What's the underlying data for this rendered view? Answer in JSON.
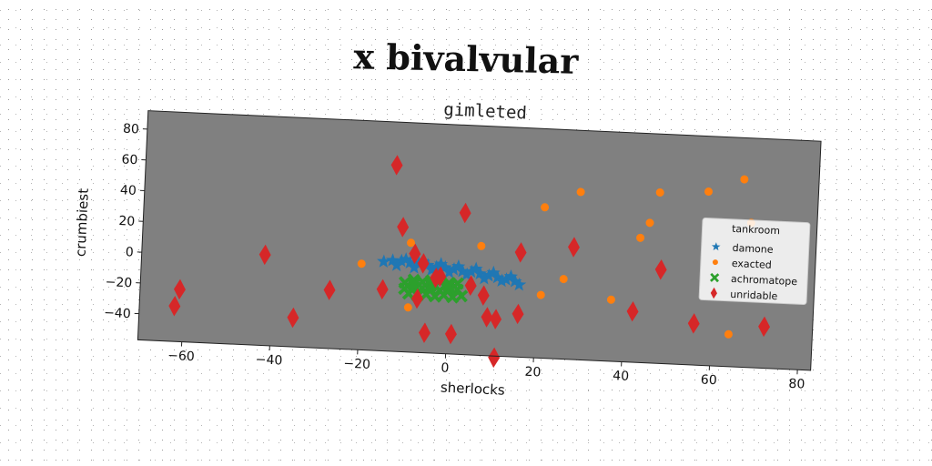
{
  "suptitle": "x bivalvular",
  "chart_data": {
    "type": "scatter",
    "title": "gimleted",
    "xlabel": "sherlocks",
    "ylabel": "crumbiest",
    "xlim": [
      -70,
      83
    ],
    "ylim": [
      -57,
      92
    ],
    "xticks": [
      -60,
      -40,
      -20,
      0,
      20,
      40,
      60,
      80
    ],
    "yticks": [
      -40,
      -20,
      0,
      20,
      40,
      60,
      80
    ],
    "grid": false,
    "plot_background": "#808080",
    "legend": {
      "title": "tankroom",
      "position": "right"
    },
    "series": [
      {
        "name": "damone",
        "marker": "star",
        "color": "#1f77b4",
        "points": [
          [
            -15,
            1
          ],
          [
            -13,
            2
          ],
          [
            -11,
            2
          ],
          [
            -9,
            1
          ],
          [
            -7,
            1
          ],
          [
            -5,
            0
          ],
          [
            -3,
            -1
          ],
          [
            -1,
            -1
          ],
          [
            1,
            -2
          ],
          [
            3,
            -3
          ],
          [
            5,
            -3
          ],
          [
            7,
            -4
          ],
          [
            9,
            -5
          ],
          [
            11,
            -6
          ],
          [
            13,
            -7
          ],
          [
            15,
            -8
          ],
          [
            16,
            -10
          ],
          [
            -12,
            -1
          ],
          [
            -8,
            -2
          ],
          [
            -4,
            -3
          ],
          [
            0,
            -4
          ],
          [
            4,
            -5
          ],
          [
            8,
            -7
          ],
          [
            12,
            -8
          ],
          [
            -10,
            3
          ],
          [
            -6,
            2
          ],
          [
            -2,
            1
          ],
          [
            2,
            0
          ],
          [
            6,
            -1
          ],
          [
            10,
            -3
          ],
          [
            14,
            -5
          ]
        ]
      },
      {
        "name": "exacted",
        "marker": "circle",
        "color": "#ff7f0e",
        "points": [
          [
            -20,
            -1
          ],
          [
            -15,
            -16
          ],
          [
            -9,
            -28
          ],
          [
            -9,
            14
          ],
          [
            7,
            14
          ],
          [
            16,
            11
          ],
          [
            21,
            -16
          ],
          [
            21,
            41
          ],
          [
            26,
            -5
          ],
          [
            29,
            52
          ],
          [
            37,
            -17
          ],
          [
            43,
            24
          ],
          [
            45,
            34
          ],
          [
            47,
            54
          ],
          [
            58,
            56
          ],
          [
            64,
            -36
          ],
          [
            66,
            65
          ],
          [
            68,
            37
          ]
        ]
      },
      {
        "name": "achromatope",
        "marker": "x",
        "color": "#2ca02c",
        "points": [
          [
            -10,
            -12
          ],
          [
            -8,
            -10
          ],
          [
            -6,
            -11
          ],
          [
            -4,
            -10
          ],
          [
            -2,
            -10
          ],
          [
            0,
            -11
          ],
          [
            2,
            -11
          ],
          [
            -10,
            -16
          ],
          [
            -8,
            -15
          ],
          [
            -6,
            -15
          ],
          [
            -4,
            -16
          ],
          [
            -2,
            -16
          ],
          [
            0,
            -15
          ],
          [
            2,
            -15
          ],
          [
            -9,
            -19
          ],
          [
            -7,
            -20
          ],
          [
            -5,
            -19
          ],
          [
            -3,
            -20
          ],
          [
            -1,
            -19
          ],
          [
            1,
            -20
          ],
          [
            3,
            -19
          ],
          [
            -8,
            -13
          ],
          [
            -4,
            -13
          ],
          [
            0,
            -13
          ]
        ]
      },
      {
        "name": "unridable",
        "marker": "diamond",
        "color": "#d62728",
        "points": [
          [
            -13,
            64
          ],
          [
            -11,
            24
          ],
          [
            -6,
            1
          ],
          [
            -3,
            -8
          ],
          [
            -2,
            -7
          ],
          [
            -5,
            -44
          ],
          [
            1,
            -44
          ],
          [
            -7,
            -22
          ],
          [
            -8,
            7
          ],
          [
            -15,
            -17
          ],
          [
            -42,
            2
          ],
          [
            -35,
            -38
          ],
          [
            -27,
            -19
          ],
          [
            -61,
            -23
          ],
          [
            -62,
            -34
          ],
          [
            3,
            35
          ],
          [
            5,
            -12
          ],
          [
            8,
            -18
          ],
          [
            9,
            -32
          ],
          [
            11,
            -33
          ],
          [
            11,
            -58
          ],
          [
            16,
            11
          ],
          [
            16,
            -29
          ],
          [
            28,
            16
          ],
          [
            42,
            -24
          ],
          [
            48,
            4
          ],
          [
            56,
            -30
          ],
          [
            72,
            -30
          ]
        ]
      }
    ]
  }
}
